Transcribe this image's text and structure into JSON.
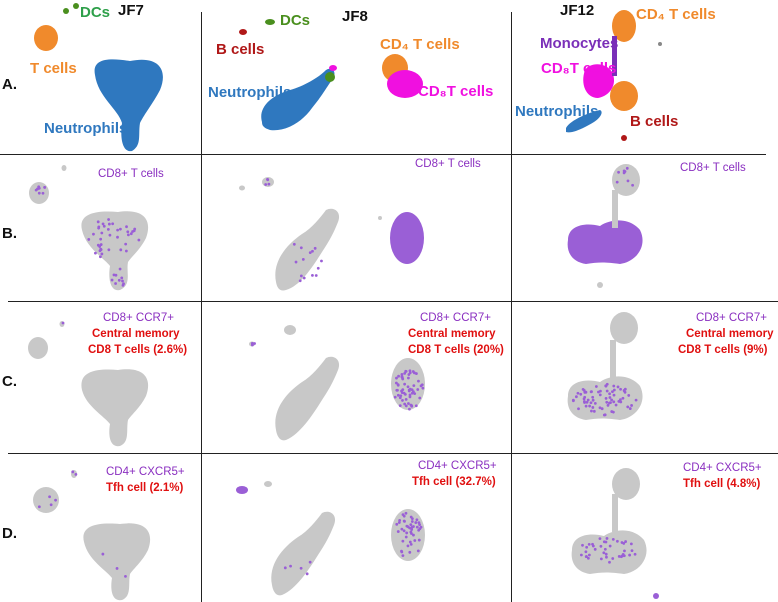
{
  "colors": {
    "grey_cluster": "#c8c8c8",
    "purple_dot": "#9a5fd6",
    "neutrophil": "#2f78bf",
    "tcell": "#f08a2c",
    "cd8": "#f010e0",
    "dc": "#4a8f1e",
    "dc_label": "#2ea04a",
    "bcell": "#b01818",
    "monocyte": "#7a2fb8",
    "label_red": "#e01010",
    "label_purple": "#8a2fc0"
  },
  "columns": [
    "JF7",
    "JF8",
    "JF12"
  ],
  "rows": [
    "A.",
    "B.",
    "C.",
    "D."
  ],
  "rowA": {
    "jf7": {
      "dcs": "DCs",
      "tcells": "T cells",
      "neutrophils": "Neutrophils"
    },
    "jf8": {
      "bcells": "B cells",
      "dcs": "DCs",
      "cd4": "CD₄ T cells",
      "cd8": "CD₈T cells",
      "neutrophils": "Neutrophils"
    },
    "jf12": {
      "cd4": "CD₄ T cells",
      "monocytes": "Monocytes",
      "cd8": "CD₈T cells",
      "neutrophils": "Neutrophils",
      "bcells": "B cells"
    }
  },
  "rowB": {
    "marker": "CD8+ T cells"
  },
  "rowC": {
    "marker": "CD8+ CCR7+",
    "subset": "Central memory",
    "jf7_pct": "CD8 T cells (2.6%)",
    "jf8_pct": "CD8 T cells (20%)",
    "jf12_pct": "CD8 T cells (9%)"
  },
  "rowD": {
    "marker": "CD4+ CXCR5+",
    "jf7_pct": "Tfh cell (2.1%)",
    "jf8_pct": "Tfh cell (32.7%)",
    "jf12_pct": "Tfh cell (4.8%)"
  }
}
